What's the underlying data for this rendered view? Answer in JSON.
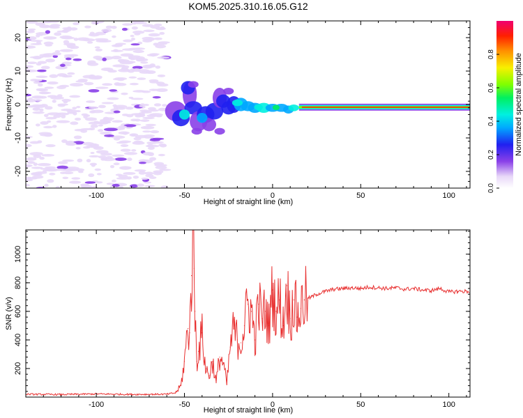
{
  "title": "KOM5.2025.310.16.05.G12",
  "chart_data": [
    {
      "type": "heatmap",
      "title": "KOM5.2025.310.16.05.G12",
      "xlabel": "Height of straight line (km)",
      "ylabel": "Frequency (Hz)",
      "xlim": [
        -140,
        112
      ],
      "ylim": [
        -25,
        25
      ],
      "xticks": [
        -100,
        -50,
        0,
        50,
        100
      ],
      "yticks": [
        -20,
        -10,
        0,
        10,
        20
      ],
      "xtick_labels": [
        "-100",
        "-50",
        "0",
        "50",
        "100"
      ],
      "ytick_labels": [
        "-20",
        "-10",
        "0",
        "10",
        "20"
      ],
      "colorbar": {
        "label": "Normalized spectral amplitude",
        "range": [
          0,
          1
        ],
        "ticks": [
          0.0,
          0.2,
          0.4,
          0.6,
          0.8
        ],
        "tick_labels": [
          "0.0",
          "0.2",
          "0.4",
          "0.6",
          "0.8"
        ]
      },
      "features": {
        "noise_region_x": [
          -140,
          -60
        ],
        "noise_level": 0.2,
        "transition_region_x": [
          -60,
          15
        ],
        "main_line_frequency": -0.8,
        "main_line_start_x": 15,
        "main_line_level": 0.95
      }
    },
    {
      "type": "line",
      "xlabel": "Height of straight line (km)",
      "ylabel": "SNR (v/v)",
      "xlim": [
        -140,
        112
      ],
      "ylim": [
        0,
        1170
      ],
      "xticks": [
        -100,
        -50,
        0,
        50,
        100
      ],
      "yticks": [
        200,
        400,
        600,
        800,
        1000
      ],
      "xtick_labels": [
        "-100",
        "-50",
        "0",
        "50",
        "100"
      ],
      "ytick_labels": [
        "200",
        "400",
        "600",
        "800",
        "1000"
      ],
      "series": [
        {
          "name": "SNR",
          "color": "#e83030",
          "x": [
            -140,
            -120,
            -100,
            -80,
            -60,
            -55,
            -52,
            -50,
            -48,
            -47,
            -46,
            -45,
            -44.5,
            -44,
            -43,
            -42,
            -40,
            -38,
            -36,
            -34,
            -32,
            -30,
            -28,
            -26,
            -24,
            -22,
            -20,
            -18,
            -16,
            -14,
            -12,
            -10,
            -8,
            -6,
            -4,
            -2,
            0,
            2,
            4,
            6,
            8,
            10,
            12,
            14,
            16,
            18,
            20,
            22,
            25,
            30,
            35,
            40,
            45,
            50,
            55,
            60,
            65,
            70,
            75,
            80,
            85,
            90,
            95,
            100,
            105,
            112
          ],
          "y": [
            20,
            18,
            22,
            19,
            20,
            30,
            80,
            250,
            480,
            450,
            850,
            1170,
            900,
            600,
            250,
            320,
            450,
            200,
            150,
            250,
            100,
            280,
            240,
            90,
            350,
            480,
            400,
            380,
            500,
            650,
            600,
            400,
            650,
            550,
            600,
            500,
            750,
            600,
            680,
            500,
            780,
            550,
            680,
            560,
            620,
            680,
            690,
            700,
            720,
            740,
            755,
            760,
            765,
            760,
            770,
            765,
            760,
            765,
            755,
            760,
            750,
            745,
            760,
            735,
            740,
            740
          ]
        }
      ]
    }
  ]
}
